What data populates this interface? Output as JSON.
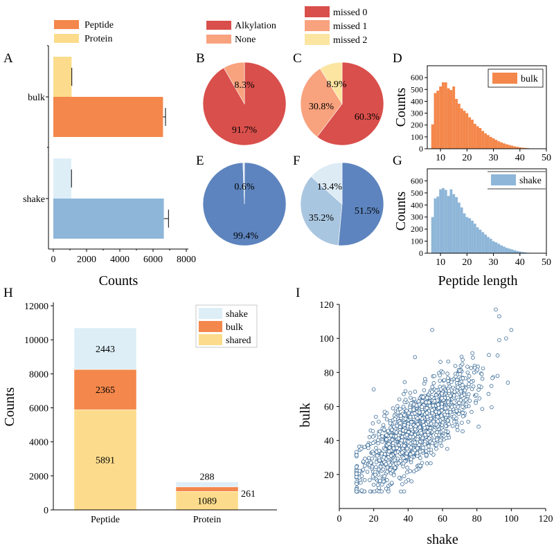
{
  "colors": {
    "peptide": "#F4874B",
    "protein": "#FCDC8C",
    "bulk_bar": "#F4874B",
    "shake_bar": "#8EB6D8",
    "alkylation": "#D94F4B",
    "none": "#F8A27E",
    "missed0": "#D94F4B",
    "missed1": "#F8A27E",
    "missed2": "#FCE5A1",
    "shake_pie_main": "#5D84BE",
    "shake_pie_mid": "#A9C6E0",
    "shake_pie_light": "#DCEBF4",
    "shake_stack": "#DDEEF7",
    "bulk_stack": "#F4874B",
    "shared_stack": "#FCDC8C",
    "scatter_marker": "#3A6A96"
  },
  "chart_data": [
    {
      "id": "A",
      "panel_label": "A",
      "type": "bar",
      "orientation": "horizontal",
      "categories": [
        "bulk",
        "shake"
      ],
      "series": [
        {
          "name": "Protein",
          "values": [
            1100,
            1080
          ],
          "errors": [
            0,
            0
          ]
        },
        {
          "name": "Peptide",
          "values": [
            6600,
            6650
          ],
          "errors": [
            150,
            280
          ]
        }
      ],
      "legend": [
        "Peptide",
        "Protein"
      ],
      "xlabel": "Counts",
      "xlim": [
        0,
        8000
      ],
      "xticks": [
        "0",
        "2000",
        "4000",
        "6000",
        "8000"
      ]
    },
    {
      "id": "B",
      "panel_label": "B",
      "type": "pie",
      "group": "bulk",
      "labels": [
        "Alkylation",
        "None"
      ],
      "values": [
        91.7,
        8.3
      ],
      "value_labels": [
        "91.7%",
        "8.3%"
      ],
      "legend": [
        "Alkylation",
        "None"
      ]
    },
    {
      "id": "C",
      "panel_label": "C",
      "type": "pie",
      "group": "bulk",
      "labels": [
        "missed 0",
        "missed 1",
        "missed 2"
      ],
      "values": [
        60.3,
        30.8,
        8.9
      ],
      "value_labels": [
        "60.3%",
        "30.8%",
        "8.9%"
      ],
      "legend": [
        "missed 0",
        "missed 1",
        "missed 2"
      ]
    },
    {
      "id": "D",
      "panel_label": "D",
      "type": "bar",
      "subtype": "histogram",
      "legend": "bulk",
      "ylabel": "Counts",
      "xlim": [
        5,
        50
      ],
      "ylim": [
        0,
        700
      ],
      "xticks": [
        "10",
        "20",
        "30",
        "40",
        "50"
      ],
      "yticks": [
        "0",
        "100",
        "200",
        "300",
        "400",
        "500",
        "600"
      ],
      "bin_width": 1,
      "bin_start": 7,
      "values": [
        205,
        470,
        490,
        525,
        560,
        560,
        510,
        495,
        525,
        420,
        380,
        340,
        320,
        300,
        265,
        245,
        210,
        190,
        175,
        150,
        130,
        115,
        100,
        88,
        75,
        63,
        54,
        45,
        38,
        32,
        26,
        20,
        16,
        12,
        9,
        7,
        5,
        3
      ]
    },
    {
      "id": "E",
      "panel_label": "E",
      "type": "pie",
      "group": "shake",
      "labels": [
        "Alkylation",
        "None"
      ],
      "values": [
        99.4,
        0.6
      ],
      "value_labels": [
        "99.4%",
        "0.6%"
      ]
    },
    {
      "id": "F",
      "panel_label": "F",
      "type": "pie",
      "group": "shake",
      "labels": [
        "missed 0",
        "missed 1",
        "missed 2"
      ],
      "values": [
        51.5,
        35.2,
        13.4
      ],
      "value_labels": [
        "51.5%",
        "35.2%",
        "13.4%"
      ]
    },
    {
      "id": "G",
      "panel_label": "G",
      "type": "bar",
      "subtype": "histogram",
      "legend": "shake",
      "ylabel": "Counts",
      "xlabel": "Peptide length",
      "xlim": [
        5,
        50
      ],
      "ylim": [
        0,
        700
      ],
      "xticks": [
        "10",
        "20",
        "30",
        "40",
        "50"
      ],
      "yticks": [
        "0",
        "100",
        "200",
        "300",
        "400",
        "500",
        "600"
      ],
      "bin_width": 1,
      "bin_start": 7,
      "values": [
        300,
        455,
        470,
        530,
        540,
        525,
        475,
        530,
        490,
        465,
        420,
        380,
        330,
        300,
        290,
        270,
        245,
        215,
        195,
        175,
        155,
        135,
        120,
        100,
        90,
        78,
        65,
        55,
        45,
        38,
        32,
        25,
        19,
        14,
        10,
        7,
        4,
        2
      ]
    },
    {
      "id": "H",
      "panel_label": "H",
      "type": "bar",
      "subtype": "stacked",
      "categories": [
        "Peptide",
        "Protein"
      ],
      "series": [
        {
          "name": "shared",
          "values": [
            5891,
            1089
          ]
        },
        {
          "name": "bulk",
          "values": [
            2365,
            261
          ]
        },
        {
          "name": "shake",
          "values": [
            2443,
            288
          ]
        }
      ],
      "value_labels": [
        [
          "5891",
          "2365",
          "2443"
        ],
        [
          "1089",
          "261",
          "288"
        ]
      ],
      "legend": [
        "shake",
        "bulk",
        "shared"
      ],
      "ylabel": "Counts",
      "ylim": [
        0,
        12000
      ],
      "yticks": [
        "0",
        "2000",
        "4000",
        "6000",
        "8000",
        "10000",
        "12000"
      ]
    },
    {
      "id": "I",
      "panel_label": "I",
      "type": "scatter",
      "xlabel": "shake",
      "ylabel": "bulk",
      "xlim": [
        0,
        120
      ],
      "ylim": [
        0,
        120
      ],
      "xticks": [
        "0",
        "20",
        "40",
        "60",
        "80",
        "100",
        "120"
      ],
      "yticks": [
        "20",
        "40",
        "60",
        "80",
        "100",
        "120"
      ],
      "n_points": 1500,
      "trend": "bulk ≈ 0.75 × shake + 13",
      "outliers": [
        [
          91,
          117
        ],
        [
          93,
          113
        ],
        [
          100,
          105
        ],
        [
          97,
          100
        ],
        [
          93,
          99
        ],
        [
          54,
          105
        ],
        [
          20,
          70
        ],
        [
          44,
          89
        ],
        [
          98,
          74
        ]
      ]
    }
  ]
}
